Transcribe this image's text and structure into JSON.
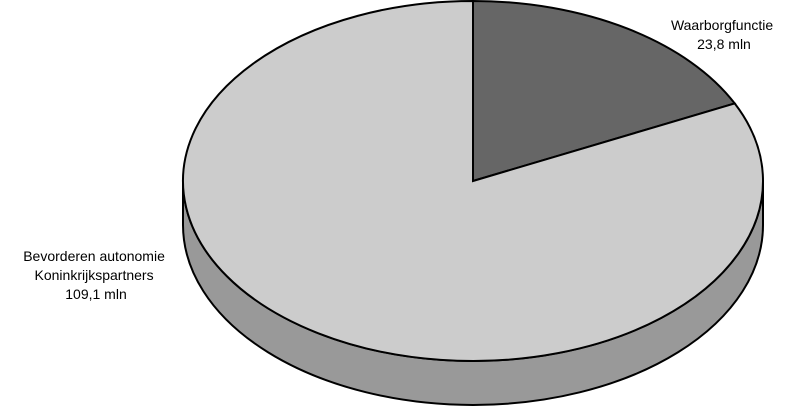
{
  "chart_data": {
    "type": "pie",
    "style": "3d",
    "title": "",
    "slices": [
      {
        "label_lines": [
          "Waarborgfunctie",
          "23,8 mln"
        ],
        "value": 23.8,
        "color": "#666666"
      },
      {
        "label_lines": [
          "Bevorderen autonomie",
          "Koninkrijkspartners",
          "109,1 mln"
        ],
        "value": 109.1,
        "color": "#cccccc"
      }
    ],
    "side_color": "#999999",
    "start": "top",
    "direction": "clockwise"
  }
}
